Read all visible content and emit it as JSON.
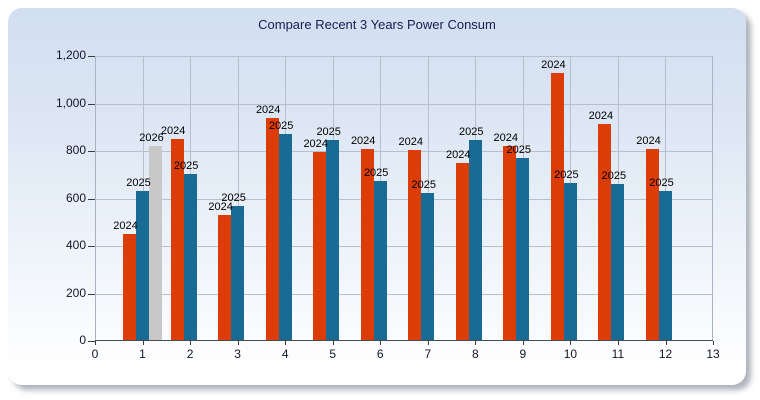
{
  "chart_data": {
    "type": "bar",
    "title": "Compare Recent 3 Years Power Consum",
    "categories": [
      1,
      2,
      3,
      4,
      5,
      6,
      7,
      8,
      9,
      10,
      11,
      12
    ],
    "series": [
      {
        "name": "2024",
        "color": "#dc3c06",
        "values": [
          450,
          850,
          530,
          940,
          795,
          810,
          805,
          750,
          820,
          1130,
          915,
          810
        ]
      },
      {
        "name": "2025",
        "color": "#176b94",
        "values": [
          630,
          705,
          570,
          870,
          845,
          675,
          625,
          845,
          770,
          665,
          660,
          630
        ]
      },
      {
        "name": "2026",
        "color": "#c8c8c8",
        "values": [
          820,
          null,
          null,
          null,
          null,
          null,
          null,
          null,
          null,
          null,
          null,
          null
        ]
      }
    ],
    "xlim": [
      0,
      13
    ],
    "ylim": [
      0,
      1200
    ],
    "ytick_step": 200,
    "yticklabels": [
      "0",
      "200",
      "400",
      "600",
      "800",
      "1,000",
      "1,200"
    ],
    "xticklabels": [
      "0",
      "1",
      "2",
      "3",
      "4",
      "5",
      "6",
      "7",
      "8",
      "9",
      "10",
      "11",
      "12",
      "13"
    ],
    "bar_value_labels": "series-name",
    "grid": true,
    "legend": "none",
    "palette": {
      "panel_top": "#d2dff1",
      "panel_bottom": "#ffffff",
      "gridline": "#b6bfcc",
      "plot_border": "#a8b2c2",
      "title_text": "#1b1b4f",
      "axis_text": "#15152a"
    }
  }
}
